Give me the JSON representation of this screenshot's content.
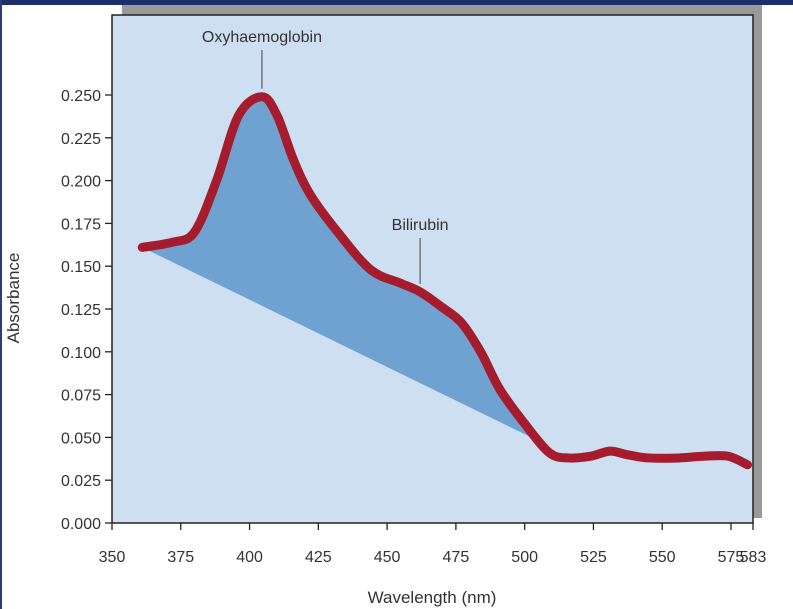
{
  "chart_data": {
    "type": "line",
    "xlabel": "Wavelength (nm)",
    "ylabel": "Absorbance",
    "xlim": [
      350,
      583
    ],
    "ylim": [
      0,
      0.27
    ],
    "x_ticks": [
      "350",
      "375",
      "400",
      "425",
      "450",
      "475",
      "500",
      "525",
      "550",
      "575",
      "583"
    ],
    "y_ticks": [
      "0.000",
      "0.025",
      "0.050",
      "0.075",
      "0.100",
      "0.125",
      "0.150",
      "0.175",
      "0.200",
      "0.225",
      "0.250"
    ],
    "grid": false,
    "series": [
      {
        "color": "#a51c2e",
        "points": [
          [
            361,
            0.161
          ],
          [
            372,
            0.164
          ],
          [
            380,
            0.17
          ],
          [
            388,
            0.2
          ],
          [
            396,
            0.238
          ],
          [
            404.5,
            0.249
          ],
          [
            410,
            0.238
          ],
          [
            416,
            0.212
          ],
          [
            422,
            0.192
          ],
          [
            432,
            0.17
          ],
          [
            444,
            0.148
          ],
          [
            455,
            0.14
          ],
          [
            462,
            0.135
          ],
          [
            470,
            0.126
          ],
          [
            477,
            0.117
          ],
          [
            484,
            0.1
          ],
          [
            491,
            0.078
          ],
          [
            500,
            0.058
          ],
          [
            509,
            0.041
          ],
          [
            516,
            0.038
          ],
          [
            524,
            0.039
          ],
          [
            531,
            0.042
          ],
          [
            537,
            0.04
          ],
          [
            545,
            0.038
          ],
          [
            556,
            0.038
          ],
          [
            565,
            0.039
          ],
          [
            574,
            0.039
          ],
          [
            581,
            0.034
          ]
        ]
      }
    ],
    "shaded_region": {
      "color": "#6fa2d0",
      "baseline_from": [
        361,
        0.161
      ],
      "baseline_to": [
        505,
        0.048
      ]
    },
    "annotations": [
      {
        "text": "Oxyhaemoglobin",
        "x": 404.5,
        "y": 0.249
      },
      {
        "text": "Bilirubin",
        "x": 462,
        "y": 0.135
      }
    ],
    "colors": {
      "plot_background": "#cddff0",
      "shadow": "#9a9a9a"
    }
  }
}
